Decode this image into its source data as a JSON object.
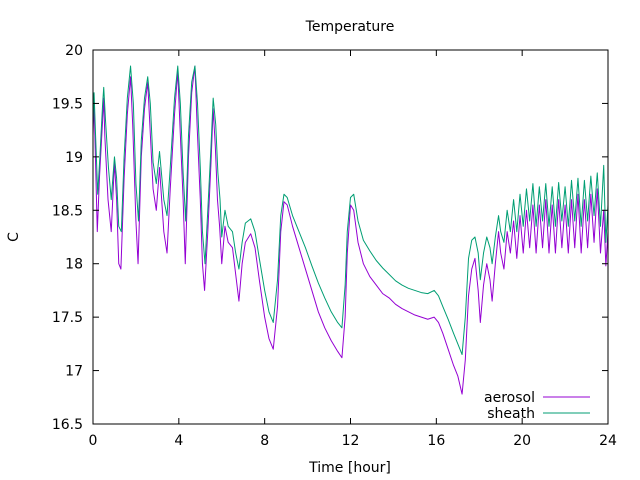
{
  "chart_data": {
    "type": "line",
    "title": "Temperature",
    "xlabel": "Time [hour]",
    "ylabel": "C",
    "xlim": [
      0,
      24
    ],
    "ylim": [
      16.5,
      20
    ],
    "xticks": [
      0,
      4,
      8,
      12,
      16,
      20,
      24
    ],
    "yticks": [
      16.5,
      17,
      17.5,
      18,
      18.5,
      19,
      19.5,
      20
    ],
    "grid": false,
    "legend_position": "bottom-right",
    "series": [
      {
        "name": "aerosol",
        "color": "#9400d3",
        "points": [
          [
            0.0,
            19.2
          ],
          [
            0.05,
            19.5
          ],
          [
            0.1,
            19.1
          ],
          [
            0.2,
            18.3
          ],
          [
            0.3,
            18.8
          ],
          [
            0.45,
            19.35
          ],
          [
            0.5,
            19.55
          ],
          [
            0.55,
            19.2
          ],
          [
            0.7,
            18.6
          ],
          [
            0.85,
            18.3
          ],
          [
            1.0,
            18.95
          ],
          [
            1.1,
            18.6
          ],
          [
            1.2,
            18.0
          ],
          [
            1.3,
            17.95
          ],
          [
            1.45,
            18.8
          ],
          [
            1.6,
            19.4
          ],
          [
            1.75,
            19.75
          ],
          [
            1.85,
            19.3
          ],
          [
            2.0,
            18.4
          ],
          [
            2.1,
            18.0
          ],
          [
            2.25,
            19.0
          ],
          [
            2.4,
            19.45
          ],
          [
            2.55,
            19.7
          ],
          [
            2.65,
            19.3
          ],
          [
            2.8,
            18.7
          ],
          [
            2.95,
            18.5
          ],
          [
            3.1,
            18.9
          ],
          [
            3.3,
            18.3
          ],
          [
            3.45,
            18.1
          ],
          [
            3.6,
            18.7
          ],
          [
            3.8,
            19.4
          ],
          [
            3.95,
            19.8
          ],
          [
            4.05,
            19.3
          ],
          [
            4.2,
            18.6
          ],
          [
            4.3,
            18.0
          ],
          [
            4.45,
            19.0
          ],
          [
            4.6,
            19.6
          ],
          [
            4.75,
            19.85
          ],
          [
            4.85,
            19.3
          ],
          [
            5.0,
            18.6
          ],
          [
            5.1,
            18.0
          ],
          [
            5.2,
            17.75
          ],
          [
            5.35,
            18.3
          ],
          [
            5.5,
            18.95
          ],
          [
            5.6,
            19.45
          ],
          [
            5.7,
            19.1
          ],
          [
            5.8,
            18.6
          ],
          [
            5.9,
            18.35
          ],
          [
            6.0,
            18.0
          ],
          [
            6.15,
            18.35
          ],
          [
            6.3,
            18.2
          ],
          [
            6.5,
            18.15
          ],
          [
            6.65,
            17.9
          ],
          [
            6.8,
            17.65
          ],
          [
            6.95,
            18.0
          ],
          [
            7.1,
            18.2
          ],
          [
            7.35,
            18.28
          ],
          [
            7.55,
            18.15
          ],
          [
            7.75,
            17.85
          ],
          [
            8.0,
            17.5
          ],
          [
            8.2,
            17.3
          ],
          [
            8.4,
            17.2
          ],
          [
            8.6,
            17.6
          ],
          [
            8.75,
            18.3
          ],
          [
            8.9,
            18.58
          ],
          [
            9.05,
            18.55
          ],
          [
            9.3,
            18.35
          ],
          [
            9.6,
            18.15
          ],
          [
            9.9,
            17.95
          ],
          [
            10.2,
            17.75
          ],
          [
            10.5,
            17.55
          ],
          [
            10.8,
            17.4
          ],
          [
            11.1,
            17.28
          ],
          [
            11.4,
            17.18
          ],
          [
            11.6,
            17.12
          ],
          [
            11.75,
            17.5
          ],
          [
            11.85,
            18.1
          ],
          [
            12.0,
            18.55
          ],
          [
            12.15,
            18.5
          ],
          [
            12.35,
            18.2
          ],
          [
            12.6,
            18.0
          ],
          [
            12.9,
            17.88
          ],
          [
            13.2,
            17.8
          ],
          [
            13.5,
            17.72
          ],
          [
            13.8,
            17.68
          ],
          [
            14.1,
            17.62
          ],
          [
            14.4,
            17.58
          ],
          [
            14.7,
            17.55
          ],
          [
            15.0,
            17.52
          ],
          [
            15.3,
            17.5
          ],
          [
            15.6,
            17.48
          ],
          [
            15.9,
            17.5
          ],
          [
            16.1,
            17.45
          ],
          [
            16.3,
            17.35
          ],
          [
            16.55,
            17.2
          ],
          [
            16.8,
            17.05
          ],
          [
            17.0,
            16.95
          ],
          [
            17.2,
            16.78
          ],
          [
            17.35,
            17.1
          ],
          [
            17.5,
            17.7
          ],
          [
            17.65,
            17.95
          ],
          [
            17.8,
            18.05
          ],
          [
            17.95,
            17.75
          ],
          [
            18.05,
            17.45
          ],
          [
            18.2,
            17.8
          ],
          [
            18.35,
            18.0
          ],
          [
            18.5,
            17.85
          ],
          [
            18.6,
            17.65
          ],
          [
            18.75,
            18.0
          ],
          [
            18.9,
            18.3
          ],
          [
            19.0,
            18.1
          ],
          [
            19.15,
            17.95
          ],
          [
            19.3,
            18.3
          ],
          [
            19.45,
            18.1
          ],
          [
            19.6,
            18.4
          ],
          [
            19.75,
            18.05
          ],
          [
            19.9,
            18.45
          ],
          [
            20.05,
            18.1
          ],
          [
            20.2,
            18.5
          ],
          [
            20.35,
            18.15
          ],
          [
            20.5,
            18.55
          ],
          [
            20.65,
            18.1
          ],
          [
            20.8,
            18.55
          ],
          [
            20.95,
            18.15
          ],
          [
            21.1,
            18.6
          ],
          [
            21.25,
            18.1
          ],
          [
            21.4,
            18.55
          ],
          [
            21.55,
            18.1
          ],
          [
            21.7,
            18.6
          ],
          [
            21.85,
            18.15
          ],
          [
            22.0,
            18.55
          ],
          [
            22.15,
            18.1
          ],
          [
            22.3,
            18.6
          ],
          [
            22.45,
            18.15
          ],
          [
            22.6,
            18.65
          ],
          [
            22.75,
            18.1
          ],
          [
            22.9,
            18.6
          ],
          [
            23.05,
            18.15
          ],
          [
            23.2,
            18.65
          ],
          [
            23.35,
            18.2
          ],
          [
            23.5,
            18.7
          ],
          [
            23.65,
            18.1
          ],
          [
            23.8,
            18.5
          ],
          [
            23.9,
            17.98
          ],
          [
            24.0,
            18.3
          ]
        ]
      },
      {
        "name": "sheath",
        "color": "#009e73",
        "points": [
          [
            0.0,
            19.3
          ],
          [
            0.05,
            19.6
          ],
          [
            0.12,
            19.2
          ],
          [
            0.22,
            18.65
          ],
          [
            0.32,
            19.0
          ],
          [
            0.45,
            19.5
          ],
          [
            0.5,
            19.65
          ],
          [
            0.58,
            19.35
          ],
          [
            0.72,
            18.9
          ],
          [
            0.85,
            18.6
          ],
          [
            1.0,
            19.0
          ],
          [
            1.1,
            18.8
          ],
          [
            1.2,
            18.35
          ],
          [
            1.32,
            18.3
          ],
          [
            1.45,
            19.0
          ],
          [
            1.6,
            19.55
          ],
          [
            1.75,
            19.85
          ],
          [
            1.88,
            19.5
          ],
          [
            2.0,
            18.75
          ],
          [
            2.12,
            18.4
          ],
          [
            2.25,
            19.15
          ],
          [
            2.4,
            19.55
          ],
          [
            2.55,
            19.75
          ],
          [
            2.67,
            19.5
          ],
          [
            2.8,
            18.95
          ],
          [
            2.95,
            18.75
          ],
          [
            3.1,
            19.05
          ],
          [
            3.3,
            18.6
          ],
          [
            3.45,
            18.45
          ],
          [
            3.6,
            18.9
          ],
          [
            3.8,
            19.55
          ],
          [
            3.95,
            19.85
          ],
          [
            4.07,
            19.5
          ],
          [
            4.2,
            18.85
          ],
          [
            4.32,
            18.4
          ],
          [
            4.45,
            19.2
          ],
          [
            4.6,
            19.7
          ],
          [
            4.75,
            19.85
          ],
          [
            4.87,
            19.5
          ],
          [
            5.0,
            18.9
          ],
          [
            5.1,
            18.3
          ],
          [
            5.22,
            18.0
          ],
          [
            5.35,
            18.5
          ],
          [
            5.5,
            19.1
          ],
          [
            5.6,
            19.55
          ],
          [
            5.72,
            19.3
          ],
          [
            5.82,
            18.85
          ],
          [
            5.92,
            18.6
          ],
          [
            6.0,
            18.25
          ],
          [
            6.15,
            18.5
          ],
          [
            6.3,
            18.35
          ],
          [
            6.5,
            18.3
          ],
          [
            6.65,
            18.1
          ],
          [
            6.8,
            17.95
          ],
          [
            6.95,
            18.2
          ],
          [
            7.1,
            18.38
          ],
          [
            7.35,
            18.42
          ],
          [
            7.55,
            18.3
          ],
          [
            7.75,
            18.05
          ],
          [
            8.0,
            17.75
          ],
          [
            8.2,
            17.55
          ],
          [
            8.4,
            17.45
          ],
          [
            8.6,
            17.85
          ],
          [
            8.75,
            18.45
          ],
          [
            8.9,
            18.65
          ],
          [
            9.05,
            18.62
          ],
          [
            9.3,
            18.45
          ],
          [
            9.6,
            18.3
          ],
          [
            9.9,
            18.15
          ],
          [
            10.2,
            17.98
          ],
          [
            10.5,
            17.82
          ],
          [
            10.8,
            17.68
          ],
          [
            11.1,
            17.55
          ],
          [
            11.4,
            17.45
          ],
          [
            11.6,
            17.4
          ],
          [
            11.75,
            17.8
          ],
          [
            11.85,
            18.3
          ],
          [
            12.0,
            18.62
          ],
          [
            12.15,
            18.65
          ],
          [
            12.35,
            18.4
          ],
          [
            12.6,
            18.22
          ],
          [
            12.9,
            18.12
          ],
          [
            13.2,
            18.03
          ],
          [
            13.5,
            17.96
          ],
          [
            13.8,
            17.9
          ],
          [
            14.1,
            17.84
          ],
          [
            14.4,
            17.8
          ],
          [
            14.7,
            17.77
          ],
          [
            15.0,
            17.75
          ],
          [
            15.3,
            17.73
          ],
          [
            15.6,
            17.72
          ],
          [
            15.9,
            17.75
          ],
          [
            16.1,
            17.7
          ],
          [
            16.3,
            17.6
          ],
          [
            16.55,
            17.48
          ],
          [
            16.8,
            17.35
          ],
          [
            17.0,
            17.25
          ],
          [
            17.2,
            17.15
          ],
          [
            17.35,
            17.5
          ],
          [
            17.5,
            18.05
          ],
          [
            17.65,
            18.22
          ],
          [
            17.8,
            18.25
          ],
          [
            17.95,
            18.1
          ],
          [
            18.05,
            17.85
          ],
          [
            18.2,
            18.1
          ],
          [
            18.35,
            18.25
          ],
          [
            18.5,
            18.15
          ],
          [
            18.6,
            18.0
          ],
          [
            18.75,
            18.25
          ],
          [
            18.9,
            18.45
          ],
          [
            19.0,
            18.3
          ],
          [
            19.15,
            18.2
          ],
          [
            19.3,
            18.5
          ],
          [
            19.45,
            18.3
          ],
          [
            19.6,
            18.6
          ],
          [
            19.75,
            18.3
          ],
          [
            19.9,
            18.65
          ],
          [
            20.05,
            18.35
          ],
          [
            20.2,
            18.7
          ],
          [
            20.35,
            18.4
          ],
          [
            20.5,
            18.75
          ],
          [
            20.65,
            18.35
          ],
          [
            20.8,
            18.72
          ],
          [
            20.95,
            18.4
          ],
          [
            21.1,
            18.75
          ],
          [
            21.25,
            18.35
          ],
          [
            21.4,
            18.72
          ],
          [
            21.55,
            18.35
          ],
          [
            21.7,
            18.76
          ],
          [
            21.85,
            18.4
          ],
          [
            22.0,
            18.72
          ],
          [
            22.15,
            18.35
          ],
          [
            22.3,
            18.78
          ],
          [
            22.45,
            18.4
          ],
          [
            22.6,
            18.8
          ],
          [
            22.75,
            18.35
          ],
          [
            22.9,
            18.78
          ],
          [
            23.05,
            18.4
          ],
          [
            23.2,
            18.82
          ],
          [
            23.35,
            18.45
          ],
          [
            23.5,
            18.85
          ],
          [
            23.65,
            18.35
          ],
          [
            23.8,
            18.92
          ],
          [
            23.9,
            18.2
          ],
          [
            24.0,
            18.55
          ]
        ]
      }
    ]
  }
}
